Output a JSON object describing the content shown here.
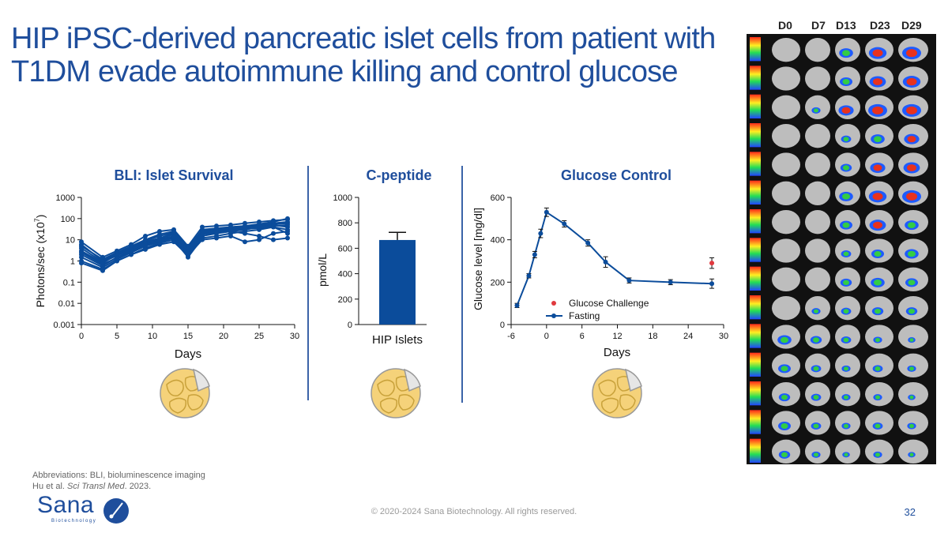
{
  "slide": {
    "title_line1": "HIP iPSC-derived pancreatic islet cells from patient with",
    "title_line2": "T1DM evade autoimmune killing and control glucose",
    "abbreviations": "Abbreviations: BLI, bioluminescence imaging",
    "citation_prefix": "Hu et al. ",
    "citation_journal": "Sci Transl Med",
    "citation_suffix": ". 2023.",
    "copyright": "© 2020-2024 Sana Biotechnology. All rights reserved.",
    "page_number": "32",
    "logo_word": "Sana",
    "logo_sub": "Biotechnology",
    "brand_color": "#1f4e9c",
    "series_color": "#0b4c9b",
    "challenge_color": "#e0393e"
  },
  "imaging": {
    "day_labels": [
      "D0",
      "D7",
      "D13",
      "D23",
      "D29"
    ],
    "rows": 15
  },
  "chart_data": [
    {
      "type": "line",
      "title": "BLI: Islet Survival",
      "xlabel": "Days",
      "ylabel_base": "Photons/sec (x10",
      "ylabel_exp": "7",
      "ylabel_end": ")",
      "yscale": "log",
      "xlim": [
        0,
        30
      ],
      "ylim": [
        0.001,
        1000
      ],
      "xticks": [
        "0",
        "5",
        "10",
        "15",
        "20",
        "25",
        "30"
      ],
      "yticks": [
        "0.001",
        "0.01",
        "0.1",
        "1",
        "10",
        "100",
        "1000"
      ],
      "x": [
        0,
        3,
        5,
        7,
        9,
        11,
        13,
        15,
        17,
        19,
        21,
        23,
        25,
        27,
        29
      ],
      "series": [
        {
          "values": [
            8,
            1.5,
            3,
            6,
            15,
            25,
            30,
            5,
            40,
            45,
            50,
            60,
            70,
            80,
            90
          ]
        },
        {
          "values": [
            5,
            1.2,
            2.5,
            5,
            10,
            18,
            25,
            4,
            30,
            35,
            40,
            45,
            55,
            70,
            100
          ]
        },
        {
          "values": [
            3,
            0.8,
            2,
            4,
            8,
            12,
            20,
            3,
            25,
            30,
            35,
            40,
            50,
            60,
            70
          ]
        },
        {
          "values": [
            2,
            0.6,
            1.5,
            3,
            6,
            10,
            15,
            2.5,
            20,
            25,
            30,
            35,
            45,
            55,
            60
          ]
        },
        {
          "values": [
            1.5,
            0.5,
            1.2,
            2.5,
            5,
            8,
            12,
            2,
            15,
            20,
            25,
            30,
            40,
            50,
            40
          ]
        },
        {
          "values": [
            1,
            0.4,
            1,
            2,
            4,
            7,
            10,
            1.5,
            12,
            15,
            20,
            25,
            30,
            40,
            30
          ]
        },
        {
          "values": [
            0.8,
            0.35,
            1,
            2,
            3.5,
            6,
            8,
            1.8,
            10,
            12,
            15,
            8,
            10,
            20,
            25
          ]
        },
        {
          "values": [
            6,
            1,
            2.2,
            4.5,
            9,
            15,
            22,
            3.5,
            28,
            32,
            25,
            20,
            15,
            10,
            12
          ]
        },
        {
          "values": [
            4,
            0.9,
            1.8,
            3.5,
            7,
            11,
            18,
            2.8,
            22,
            28,
            33,
            38,
            42,
            45,
            50
          ]
        },
        {
          "values": [
            2.5,
            0.7,
            1.4,
            2.8,
            5.5,
            9,
            14,
            2.2,
            18,
            22,
            28,
            32,
            36,
            40,
            20
          ]
        }
      ]
    },
    {
      "type": "bar",
      "title": "C-peptide",
      "ylabel": "pmol/L",
      "categories": [
        "HIP Islets"
      ],
      "values": [
        665
      ],
      "errors": [
        60
      ],
      "ylim": [
        0,
        1000
      ],
      "yticks": [
        "0",
        "200",
        "400",
        "600",
        "800",
        "1000"
      ]
    },
    {
      "type": "line",
      "title": "Glucose Control",
      "xlabel": "Days",
      "ylabel": "Glucose level [mg/dl]",
      "xlim": [
        -6,
        30
      ],
      "ylim": [
        0,
        600
      ],
      "xticks": [
        "-6",
        "0",
        "6",
        "12",
        "18",
        "24",
        "30"
      ],
      "yticks": [
        "0",
        "200",
        "400",
        "600"
      ],
      "legend_loc": "center",
      "series": [
        {
          "name": "Fasting",
          "x": [
            -5,
            -3,
            -2,
            -1,
            0,
            3,
            7,
            10,
            14,
            21,
            28
          ],
          "values": [
            90,
            230,
            330,
            430,
            530,
            475,
            385,
            295,
            208,
            200,
            193
          ],
          "errors": [
            10,
            10,
            15,
            20,
            20,
            15,
            15,
            25,
            12,
            12,
            22
          ]
        },
        {
          "name": "Glucose Challenge",
          "x": [
            28
          ],
          "values": [
            290
          ],
          "errors": [
            25
          ]
        }
      ]
    }
  ]
}
